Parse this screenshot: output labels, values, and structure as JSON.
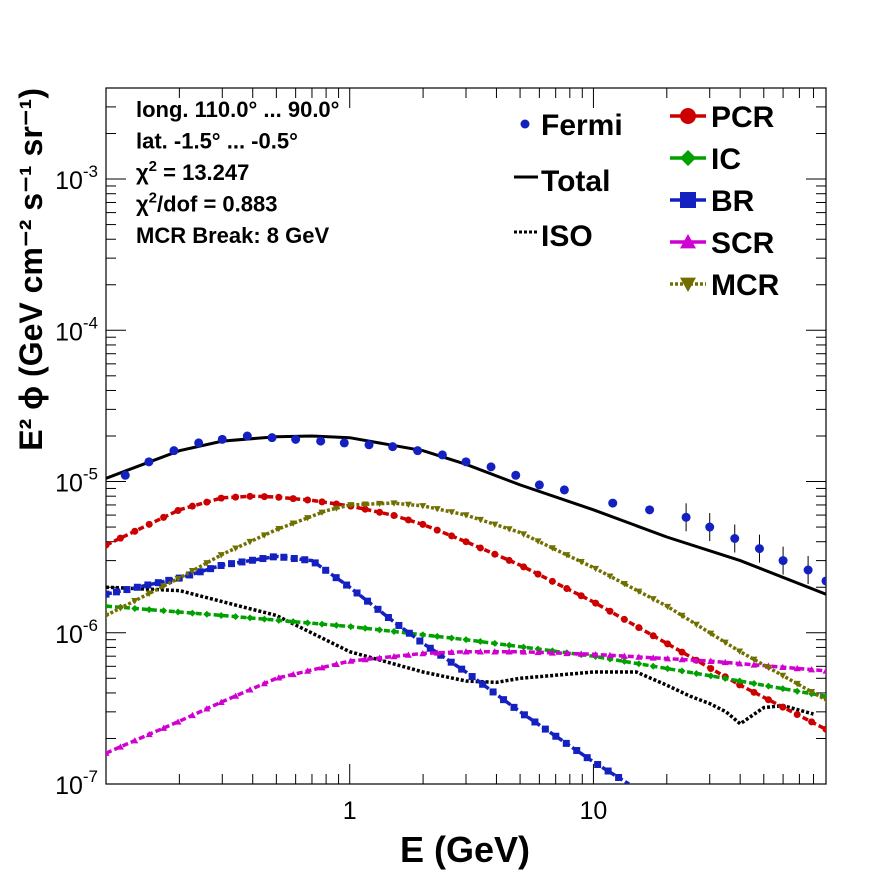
{
  "chart_data": {
    "type": "line",
    "x_scale": "log",
    "y_scale": "log",
    "xlim": [
      0.1,
      90
    ],
    "ylim": [
      1e-07,
      0.004
    ],
    "xlabel": "E (GeV)",
    "ylabel": "E² ϕ (GeV cm⁻² s⁻¹ sr⁻¹)",
    "x_ticks": [
      {
        "value": 1,
        "label": "1"
      },
      {
        "value": 10,
        "label": "10"
      }
    ],
    "y_ticks": [
      {
        "value": 1e-07,
        "mantissa": "10",
        "exp": "-7"
      },
      {
        "value": 1e-06,
        "mantissa": "10",
        "exp": "-6"
      },
      {
        "value": 1e-05,
        "mantissa": "10",
        "exp": "-5"
      },
      {
        "value": 0.0001,
        "mantissa": "10",
        "exp": "-4"
      },
      {
        "value": 0.001,
        "mantissa": "10",
        "exp": "-3"
      }
    ],
    "info": [
      {
        "text": "long. 110.0° ... 90.0°"
      },
      {
        "text": "lat. -1.5° ... -0.5°"
      },
      {
        "pre": "χ",
        "sup": "2",
        "post": " = 13.247"
      },
      {
        "pre": "χ",
        "sup": "2",
        "post": "/dof = 0.883"
      },
      {
        "text": "MCR Break:  8 GeV"
      }
    ],
    "fermi": {
      "name": "Fermi",
      "color": "#1520c0",
      "x": [
        0.12,
        0.15,
        0.19,
        0.24,
        0.3,
        0.38,
        0.48,
        0.6,
        0.76,
        0.95,
        1.2,
        1.5,
        1.9,
        2.4,
        3.0,
        3.8,
        4.8,
        6.0,
        7.6,
        12,
        17,
        24,
        30,
        38,
        48,
        60,
        76,
        90
      ],
      "y": [
        1.1e-05,
        1.35e-05,
        1.6e-05,
        1.8e-05,
        1.9e-05,
        2e-05,
        1.95e-05,
        1.9e-05,
        1.85e-05,
        1.8e-05,
        1.75e-05,
        1.7e-05,
        1.6e-05,
        1.5e-05,
        1.35e-05,
        1.25e-05,
        1.1e-05,
        9.5e-06,
        8.8e-06,
        7.2e-06,
        6.5e-06,
        5.8e-06,
        5e-06,
        4.2e-06,
        3.6e-06,
        3e-06,
        2.6e-06,
        2.2e-06
      ]
    },
    "series": [
      {
        "name": "Total",
        "color": "#000000",
        "style": "solid",
        "marker": "none",
        "x": [
          0.1,
          0.2,
          0.3,
          0.5,
          0.7,
          1.0,
          2,
          3,
          5,
          10,
          20,
          40,
          90
        ],
        "y": [
          1.05e-05,
          1.6e-05,
          1.85e-05,
          1.98e-05,
          2e-05,
          1.95e-05,
          1.6e-05,
          1.3e-05,
          9.5e-06,
          6.5e-06,
          4.3e-06,
          3e-06,
          1.8e-06
        ]
      },
      {
        "name": "ISO",
        "color": "#000000",
        "style": "dotted",
        "marker": "none",
        "x": [
          0.1,
          0.2,
          0.5,
          1,
          2,
          3,
          4,
          5,
          10,
          15,
          20,
          25,
          30,
          35,
          40,
          50,
          60,
          80
        ],
        "y": [
          2e-06,
          1.9e-06,
          1.3e-06,
          7.5e-07,
          5.5e-07,
          4.8e-07,
          4.7e-07,
          5e-07,
          5.5e-07,
          5.5e-07,
          4.5e-07,
          3.8e-07,
          3.4e-07,
          3e-07,
          2.5e-07,
          3.2e-07,
          3.3e-07,
          2.9e-07
        ]
      },
      {
        "name": "PCR",
        "color": "#cc0000",
        "style": "dashed",
        "marker": "circle",
        "x": [
          0.1,
          0.2,
          0.3,
          0.4,
          0.5,
          0.7,
          1.0,
          1.5,
          2,
          3,
          5,
          10,
          20,
          40,
          90
        ],
        "y": [
          3.8e-06,
          6.5e-06,
          7.8e-06,
          8e-06,
          7.9e-06,
          7.5e-06,
          6.9e-06,
          6e-06,
          5.2e-06,
          4e-06,
          2.8e-06,
          1.6e-06,
          8.5e-07,
          4.5e-07,
          2.3e-07
        ]
      },
      {
        "name": "IC",
        "color": "#00a000",
        "style": "dashed",
        "marker": "diamond",
        "x": [
          0.1,
          0.3,
          1,
          3,
          10,
          30,
          90
        ],
        "y": [
          1.5e-06,
          1.3e-06,
          1.1e-06,
          9e-07,
          7e-07,
          5.2e-07,
          3.8e-07
        ]
      },
      {
        "name": "BR",
        "color": "#1520c0",
        "style": "dashed",
        "marker": "square",
        "x": [
          0.1,
          0.2,
          0.3,
          0.5,
          0.7,
          1.0,
          1.5,
          2,
          3,
          5,
          10,
          14
        ],
        "y": [
          1.8e-06,
          2.3e-06,
          2.8e-06,
          3.2e-06,
          3e-06,
          2e-06,
          1.2e-06,
          8.5e-07,
          5.5e-07,
          3e-07,
          1.4e-07,
          1e-07
        ]
      },
      {
        "name": "SCR",
        "color": "#d000d0",
        "style": "dashed",
        "marker": "triangle-up",
        "x": [
          0.1,
          0.2,
          0.3,
          0.5,
          1,
          2,
          3,
          5,
          10,
          30,
          90
        ],
        "y": [
          1.6e-07,
          2.6e-07,
          3.5e-07,
          5e-07,
          6.5e-07,
          7.3e-07,
          7.5e-07,
          7.5e-07,
          7.2e-07,
          6.5e-07,
          5.6e-07
        ]
      },
      {
        "name": "MCR",
        "color": "#707000",
        "style": "dotted",
        "marker": "triangle-down",
        "x": [
          0.1,
          0.2,
          0.3,
          0.5,
          0.8,
          1.0,
          1.5,
          2,
          3,
          5,
          8,
          10,
          20,
          40,
          90
        ],
        "y": [
          1.3e-06,
          2.3e-06,
          3.3e-06,
          4.8e-06,
          6.4e-06,
          7e-06,
          7.2e-06,
          6.9e-06,
          6e-06,
          4.6e-06,
          3.2e-06,
          2.7e-06,
          1.5e-06,
          7.5e-07,
          3.6e-07
        ]
      }
    ]
  }
}
